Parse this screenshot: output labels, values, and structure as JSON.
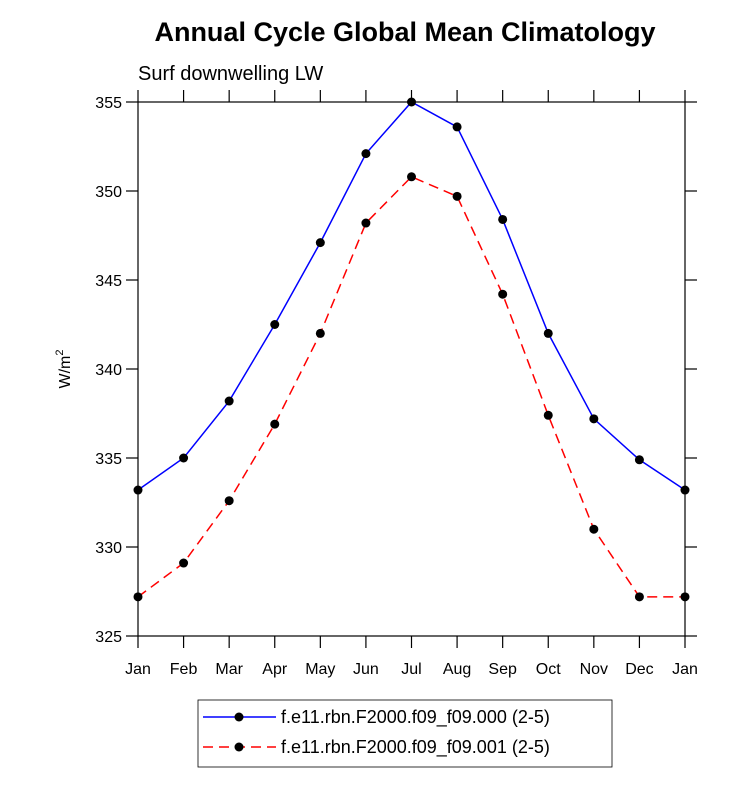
{
  "chart_data": {
    "type": "line",
    "title": "Annual Cycle Global Mean Climatology",
    "subtitle": "Surf downwelling LW",
    "ylabel": "W/m",
    "ylabel_superscript": "2",
    "xlabel": "",
    "ylim": [
      325,
      355
    ],
    "yticks": [
      325,
      330,
      335,
      340,
      345,
      350,
      355
    ],
    "categories": [
      "Jan",
      "Feb",
      "Mar",
      "Apr",
      "May",
      "Jun",
      "Jul",
      "Aug",
      "Sep",
      "Oct",
      "Nov",
      "Dec",
      "Jan"
    ],
    "grid": false,
    "legend_position": "bottom",
    "series": [
      {
        "name": "f.e11.rbn.F2000.f09_f09.000 (2-5)",
        "color": "#0000ff",
        "line_style": "solid",
        "marker": "filled-circle",
        "values": [
          333.2,
          335.0,
          338.2,
          342.5,
          347.1,
          352.1,
          355.0,
          353.6,
          348.4,
          342.0,
          337.2,
          334.9,
          333.2
        ]
      },
      {
        "name": "f.e11.rbn.F2000.f09_f09.001 (2-5)",
        "color": "#ff0000",
        "line_style": "dashed",
        "marker": "filled-circle",
        "values": [
          327.2,
          329.1,
          332.6,
          336.9,
          342.0,
          348.2,
          350.8,
          349.7,
          344.2,
          337.4,
          331.0,
          327.2,
          327.2
        ]
      }
    ]
  }
}
